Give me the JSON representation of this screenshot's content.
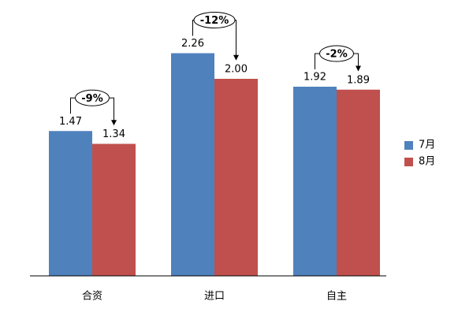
{
  "chart_data": {
    "type": "bar",
    "categories": [
      "合资",
      "进口",
      "自主"
    ],
    "series": [
      {
        "name": "7月",
        "color": "#4f81bd",
        "values": [
          1.47,
          2.26,
          1.92
        ],
        "value_labels": [
          "1.47",
          "2.26",
          "1.92"
        ]
      },
      {
        "name": "8月",
        "color": "#c0504d",
        "values": [
          1.34,
          2.0,
          1.89
        ],
        "value_labels": [
          "1.34",
          "2.00",
          "1.89"
        ]
      }
    ],
    "annotations": [
      "-9%",
      "-12%",
      "-2%"
    ],
    "legend": "right"
  }
}
